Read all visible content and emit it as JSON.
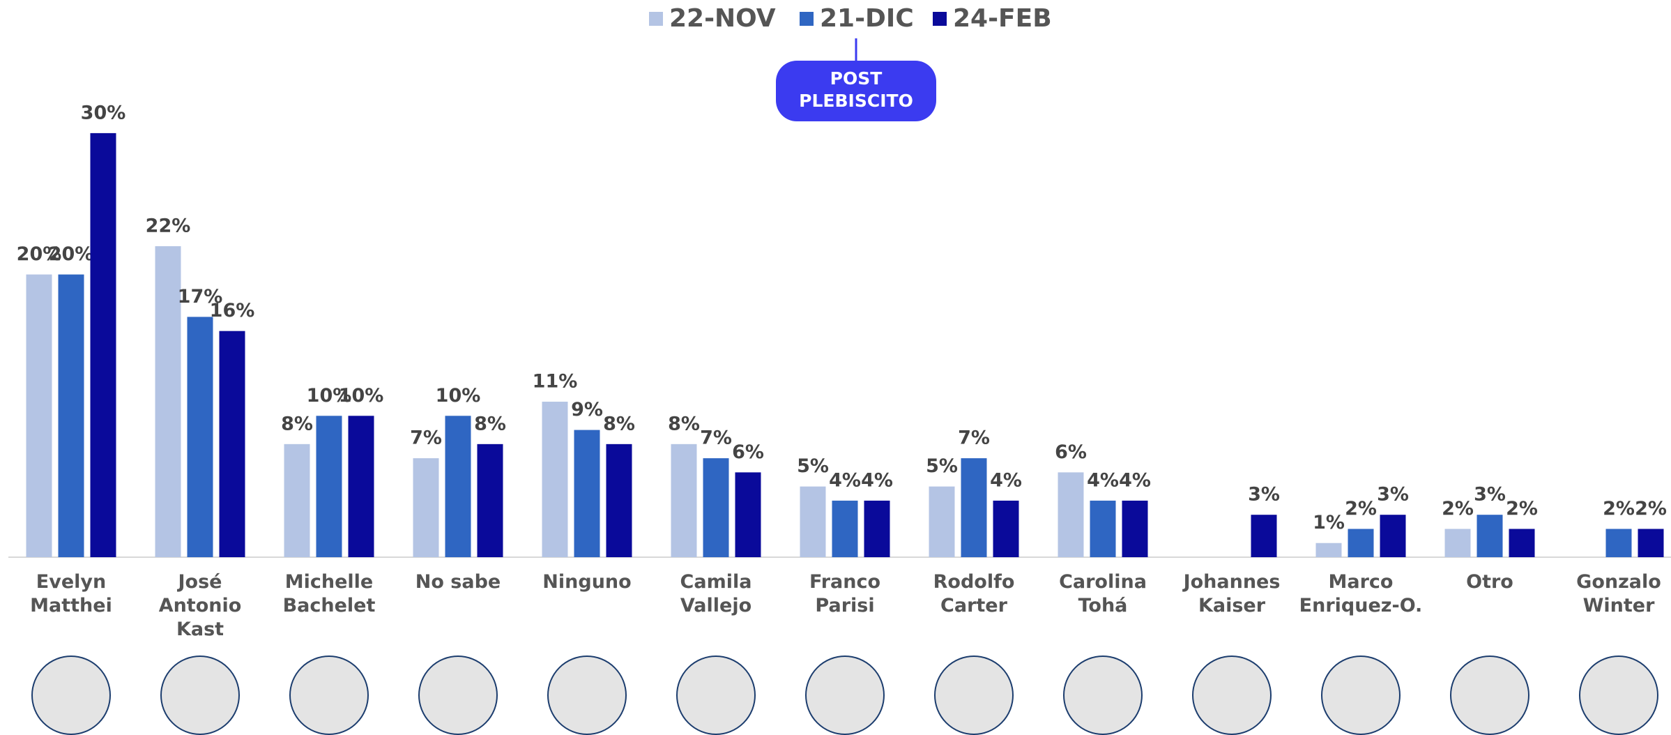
{
  "chart_data": {
    "type": "bar",
    "annotation": "POST\nPLEBISCITO",
    "categories": [
      "Evelyn\nMatthei",
      "José\nAntonio\nKast",
      "Michelle\nBachelet",
      "No sabe",
      "Ninguno",
      "Camila\nVallejo",
      "Franco\nParisi",
      "Rodolfo\nCarter",
      "Carolina\nTohá",
      "Johannes\nKaiser",
      "Marco\nEnriquez-O.",
      "Otro",
      "Gonzalo\nWinter"
    ],
    "series": [
      {
        "name": "22-NOV",
        "color": "#b4c4e4",
        "values": [
          20,
          22,
          8,
          7,
          11,
          8,
          5,
          5,
          6,
          null,
          1,
          2,
          null
        ],
        "value_labels": [
          "20%",
          "22%",
          "8%",
          "7%",
          "11%",
          "8%",
          "5%",
          "5%",
          "6%",
          null,
          "1%",
          "2%",
          null
        ]
      },
      {
        "name": "21-DIC",
        "color": "#2f66c2",
        "values": [
          20,
          17,
          10,
          10,
          9,
          7,
          4,
          7,
          4,
          null,
          2,
          3,
          2
        ],
        "value_labels": [
          "20%",
          "17%",
          "10%",
          "10%",
          "9%",
          "7%",
          "4%",
          "7%",
          "4%",
          null,
          "2%",
          "3%",
          "2%"
        ]
      },
      {
        "name": "24-FEB",
        "color": "#0a0a9a",
        "values": [
          30,
          16,
          10,
          8,
          8,
          6,
          4,
          4,
          4,
          3,
          3,
          2,
          2
        ],
        "value_labels": [
          "30%",
          "16%",
          "10%",
          "8%",
          "8%",
          "6%",
          "4%",
          "4%",
          "4%",
          "3%",
          "3%",
          "2%",
          "2%"
        ]
      }
    ]
  }
}
